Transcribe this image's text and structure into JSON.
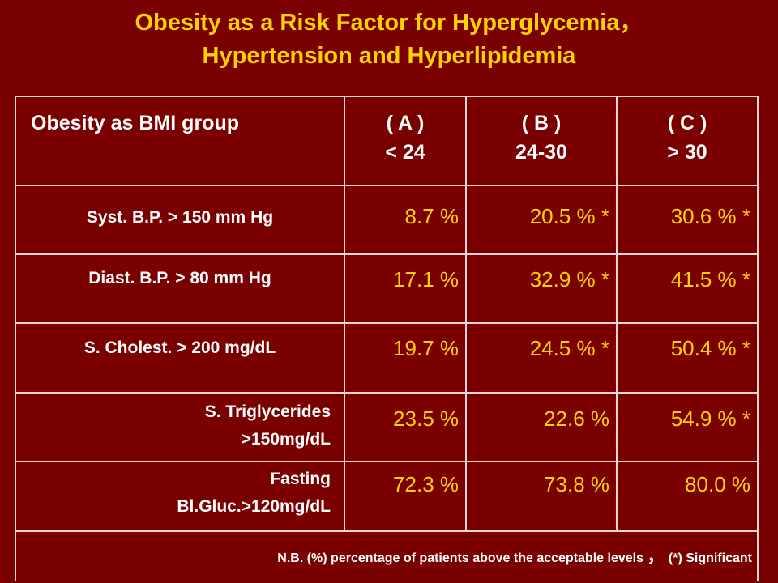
{
  "slide": {
    "title_line1": "Obesity as a Risk Factor for Hyperglycemia，",
    "title_line2": "Hypertension and Hyperlipidemia"
  },
  "table": {
    "header": {
      "group_label": "Obesity as BMI group",
      "columns": [
        {
          "name": "( A )",
          "range": "< 24"
        },
        {
          "name": "( B )",
          "range": "24-30"
        },
        {
          "name": "( C )",
          "range": "> 30"
        }
      ]
    },
    "rows": [
      {
        "label_line1": "Syst. B.P. > 150 mm Hg",
        "label_line2": "",
        "a": "8.7 %",
        "b": "20.5 % *",
        "c": "30.6 % *"
      },
      {
        "label_line1": "Diast. B.P. > 80 mm Hg",
        "label_line2": "",
        "a": "17.1 %",
        "b": "32.9 % *",
        "c": "41.5 % *"
      },
      {
        "label_line1": "S. Cholest. > 200 mg/dL",
        "label_line2": "",
        "a": "19.7 %",
        "b": "24.5 % *",
        "c": "50.4 % *"
      },
      {
        "label_line1": "S. Triglycerides",
        "label_line2": ">150mg/dL",
        "a": "23.5 %",
        "b": "22.6 %",
        "c": "54.9 % *"
      },
      {
        "label_line1": "Fasting",
        "label_line2": "Bl.Gluc.>120mg/dL",
        "a": "72.3 %",
        "b": "73.8 %",
        "c": "80.0 %"
      }
    ],
    "note_part1": "N.B. (%) percentage of patients above the acceptable levels ",
    "note_sep": "，",
    "note_part2": " (*) Significant"
  }
}
